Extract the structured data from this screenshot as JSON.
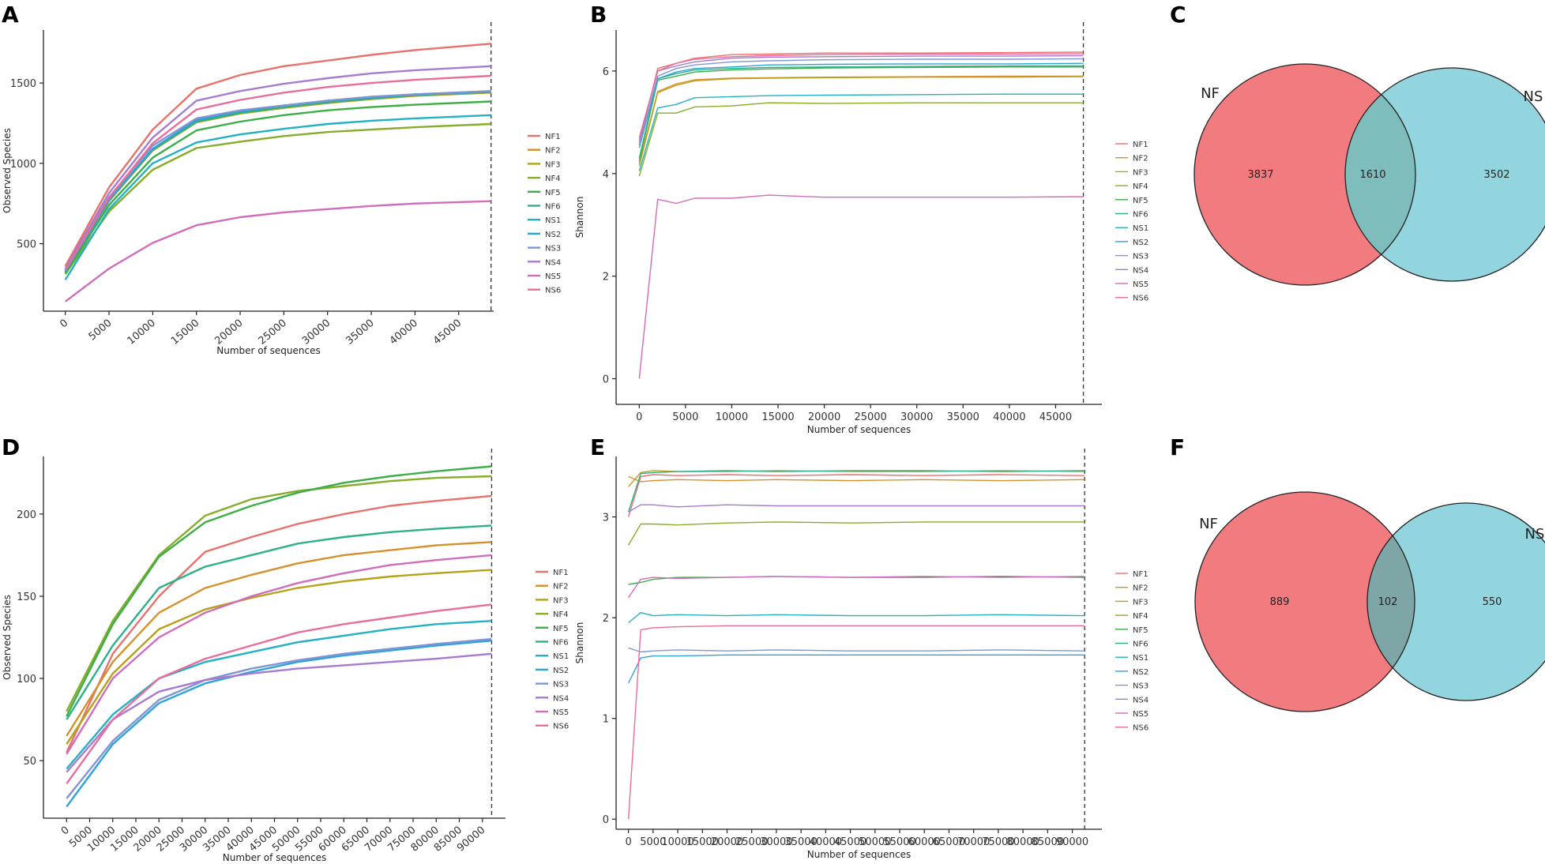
{
  "figure": {
    "series_names": [
      "NF1",
      "NF2",
      "NF3",
      "NF4",
      "NF5",
      "NF6",
      "NS1",
      "NS2",
      "NS3",
      "NS4",
      "NS5",
      "NS6"
    ],
    "colors": {
      "NF1": "#e8716b",
      "NF2": "#d6902a",
      "NF3": "#b5a21a",
      "NF4": "#86ad2a",
      "NF5": "#3cae48",
      "NF6": "#2bb08a",
      "NS1": "#22b1c3",
      "NS2": "#2fa2d8",
      "NS3": "#7f95d6",
      "NS4": "#a67bd0",
      "NS5": "#d06cbc",
      "NS6": "#e96c9c"
    }
  },
  "chart_data": [
    {
      "panel": "A",
      "type": "line",
      "xlabel": "Number of sequences",
      "ylabel": "Observed Species",
      "xlim": [
        -2500,
        49000
      ],
      "ylim": [
        80,
        1830
      ],
      "xticks": [
        0,
        5000,
        10000,
        15000,
        20000,
        25000,
        30000,
        35000,
        40000,
        45000
      ],
      "xtick_labels": [
        "0",
        "5000",
        "10000",
        "15000",
        "20000",
        "25000",
        "30000",
        "35000",
        "40000",
        "45000"
      ],
      "yticks": [
        500,
        1000,
        1500
      ],
      "ytick_labels": [
        "500",
        "1000",
        "1500"
      ],
      "xtick_rotate": true,
      "vline": 48700,
      "x": [
        0,
        5000,
        10000,
        15000,
        20000,
        25000,
        30000,
        35000,
        40000,
        48700
      ],
      "series": [
        {
          "name": "NF1",
          "values": [
            360,
            850,
            1210,
            1465,
            1550,
            1605,
            1640,
            1675,
            1705,
            1745
          ]
        },
        {
          "name": "NF2",
          "values": [
            330,
            775,
            1090,
            1265,
            1320,
            1355,
            1385,
            1410,
            1430,
            1450
          ]
        },
        {
          "name": "NF3",
          "values": [
            320,
            765,
            1080,
            1255,
            1310,
            1345,
            1375,
            1400,
            1420,
            1440
          ]
        },
        {
          "name": "NF4",
          "values": [
            310,
            700,
            960,
            1095,
            1135,
            1170,
            1195,
            1210,
            1225,
            1245
          ]
        },
        {
          "name": "NF5",
          "values": [
            315,
            740,
            1035,
            1205,
            1260,
            1300,
            1330,
            1350,
            1365,
            1385
          ]
        },
        {
          "name": "NF6",
          "values": [
            325,
            770,
            1085,
            1260,
            1315,
            1350,
            1380,
            1405,
            1425,
            1445
          ]
        },
        {
          "name": "NS1",
          "values": [
            275,
            715,
            1000,
            1130,
            1180,
            1215,
            1245,
            1265,
            1280,
            1300
          ]
        },
        {
          "name": "NS2",
          "values": [
            330,
            770,
            1090,
            1270,
            1325,
            1360,
            1390,
            1410,
            1430,
            1445
          ]
        },
        {
          "name": "NS3",
          "values": [
            340,
            790,
            1110,
            1280,
            1330,
            1360,
            1390,
            1415,
            1430,
            1450
          ]
        },
        {
          "name": "NS4",
          "values": [
            345,
            815,
            1160,
            1390,
            1450,
            1495,
            1530,
            1560,
            1580,
            1605
          ]
        },
        {
          "name": "NS5",
          "values": [
            140,
            345,
            505,
            615,
            665,
            695,
            715,
            735,
            750,
            765
          ]
        },
        {
          "name": "NS6",
          "values": [
            335,
            785,
            1125,
            1335,
            1395,
            1440,
            1475,
            1500,
            1520,
            1545
          ]
        }
      ]
    },
    {
      "panel": "B",
      "type": "line",
      "xlabel": "Number of sequences",
      "ylabel": "Shannon",
      "xlim": [
        -2500,
        50000
      ],
      "ylim": [
        -0.5,
        6.8
      ],
      "xticks": [
        0,
        5000,
        10000,
        15000,
        20000,
        25000,
        30000,
        35000,
        40000,
        45000
      ],
      "xtick_labels": [
        "0",
        "5000",
        "10000",
        "15000",
        "20000",
        "25000",
        "30000",
        "35000",
        "40000",
        "45000"
      ],
      "yticks": [
        0,
        2,
        4,
        6
      ],
      "ytick_labels": [
        "0",
        "2",
        "4",
        "6"
      ],
      "xtick_rotate": false,
      "vline": 48000,
      "x": [
        0,
        2000,
        4000,
        6000,
        10000,
        14000,
        20000,
        30000,
        40000,
        48000
      ],
      "series": [
        {
          "name": "NF1",
          "values": [
            4.6,
            6.05,
            6.15,
            6.25,
            6.32,
            6.33,
            6.35,
            6.35,
            6.36,
            6.37
          ]
        },
        {
          "name": "NF2",
          "values": [
            4.2,
            5.6,
            5.75,
            5.83,
            5.86,
            5.87,
            5.88,
            5.89,
            5.9,
            5.9
          ]
        },
        {
          "name": "NF3",
          "values": [
            4.15,
            5.58,
            5.72,
            5.81,
            5.85,
            5.86,
            5.87,
            5.88,
            5.88,
            5.89
          ]
        },
        {
          "name": "NF4",
          "values": [
            3.95,
            5.18,
            5.18,
            5.3,
            5.32,
            5.38,
            5.37,
            5.38,
            5.38,
            5.38
          ]
        },
        {
          "name": "NF5",
          "values": [
            4.25,
            5.82,
            5.9,
            5.98,
            6.02,
            6.04,
            6.06,
            6.07,
            6.08,
            6.08
          ]
        },
        {
          "name": "NF6",
          "values": [
            4.3,
            5.85,
            5.95,
            6.02,
            6.05,
            6.07,
            6.08,
            6.09,
            6.1,
            6.1
          ]
        },
        {
          "name": "NS1",
          "values": [
            4.05,
            5.28,
            5.35,
            5.48,
            5.5,
            5.52,
            5.53,
            5.54,
            5.55,
            5.55
          ]
        },
        {
          "name": "NS2",
          "values": [
            4.5,
            5.85,
            5.98,
            6.05,
            6.08,
            6.12,
            6.13,
            6.14,
            6.14,
            6.15
          ]
        },
        {
          "name": "NS3",
          "values": [
            4.55,
            5.9,
            6.05,
            6.12,
            6.18,
            6.2,
            6.22,
            6.23,
            6.23,
            6.24
          ]
        },
        {
          "name": "NS4",
          "values": [
            4.65,
            6.0,
            6.1,
            6.18,
            6.25,
            6.27,
            6.28,
            6.29,
            6.29,
            6.3
          ]
        },
        {
          "name": "NS5",
          "values": [
            0.0,
            3.5,
            3.42,
            3.52,
            3.52,
            3.58,
            3.54,
            3.54,
            3.54,
            3.55
          ]
        },
        {
          "name": "NS6",
          "values": [
            4.7,
            6.0,
            6.15,
            6.23,
            6.28,
            6.3,
            6.32,
            6.33,
            6.33,
            6.34
          ]
        }
      ]
    },
    {
      "panel": "D",
      "type": "line",
      "xlabel": "Number of sequences",
      "ylabel": "Observed Species",
      "xlim": [
        -5000,
        95000
      ],
      "ylim": [
        15,
        235
      ],
      "xticks": [
        0,
        5000,
        10000,
        15000,
        20000,
        25000,
        30000,
        35000,
        40000,
        45000,
        50000,
        55000,
        60000,
        65000,
        70000,
        75000,
        80000,
        85000,
        90000
      ],
      "xtick_labels": [
        "0",
        "5000",
        "10000",
        "15000",
        "20000",
        "25000",
        "30000",
        "35000",
        "40000",
        "45000",
        "50000",
        "55000",
        "60000",
        "65000",
        "70000",
        "75000",
        "80000",
        "85000",
        "90000"
      ],
      "yticks": [
        50,
        100,
        150,
        200
      ],
      "ytick_labels": [
        "50",
        "100",
        "150",
        "200"
      ],
      "xtick_rotate": true,
      "vline": 92000,
      "x": [
        0,
        10000,
        20000,
        30000,
        40000,
        50000,
        60000,
        70000,
        80000,
        92000
      ],
      "series": [
        {
          "name": "NF1",
          "values": [
            55,
            115,
            150,
            177,
            186,
            194,
            200,
            205,
            208,
            211
          ]
        },
        {
          "name": "NF2",
          "values": [
            65,
            110,
            140,
            155,
            163,
            170,
            175,
            178,
            181,
            183
          ]
        },
        {
          "name": "NF3",
          "values": [
            60,
            103,
            130,
            142,
            149,
            155,
            159,
            162,
            164,
            166
          ]
        },
        {
          "name": "NF4",
          "values": [
            80,
            135,
            175,
            199,
            209,
            214,
            217,
            220,
            222,
            223
          ]
        },
        {
          "name": "NF5",
          "values": [
            77,
            133,
            174,
            195,
            205,
            213,
            219,
            223,
            226,
            229
          ]
        },
        {
          "name": "NF6",
          "values": [
            75,
            120,
            155,
            168,
            175,
            182,
            186,
            189,
            191,
            193
          ]
        },
        {
          "name": "NS1",
          "values": [
            45,
            78,
            100,
            110,
            116,
            122,
            126,
            130,
            133,
            135
          ]
        },
        {
          "name": "NS2",
          "values": [
            22,
            60,
            85,
            97,
            104,
            110,
            114,
            117,
            120,
            123
          ]
        },
        {
          "name": "NS3",
          "values": [
            27,
            62,
            87,
            99,
            106,
            111,
            115,
            118,
            121,
            124
          ]
        },
        {
          "name": "NS4",
          "values": [
            43,
            75,
            92,
            99,
            103,
            106,
            108,
            110,
            112,
            115
          ]
        },
        {
          "name": "NS5",
          "values": [
            54,
            100,
            125,
            140,
            150,
            158,
            164,
            169,
            172,
            175
          ]
        },
        {
          "name": "NS6",
          "values": [
            36,
            75,
            100,
            112,
            120,
            128,
            133,
            137,
            141,
            145
          ]
        }
      ]
    },
    {
      "panel": "E",
      "type": "line",
      "xlabel": "Number of sequences",
      "ylabel": "Shannon",
      "xlim": [
        -2500,
        96000
      ],
      "ylim": [
        -0.1,
        3.6
      ],
      "xticks": [
        0,
        5000,
        10000,
        15000,
        20000,
        25000,
        30000,
        35000,
        40000,
        45000,
        50000,
        55000,
        60000,
        65000,
        70000,
        75000,
        80000,
        85000,
        90000
      ],
      "xtick_labels": [
        "0",
        "5000",
        "10000",
        "15000",
        "20000",
        "25000",
        "30000",
        "35000",
        "40000",
        "45000",
        "50000",
        "55000",
        "60000",
        "65000",
        "70000",
        "75000",
        "80000",
        "85000",
        "90000"
      ],
      "yticks": [
        0,
        1,
        2,
        3
      ],
      "ytick_labels": [
        "0",
        "1",
        "2",
        "3"
      ],
      "xtick_rotate": false,
      "vline": 92500,
      "x": [
        0,
        2500,
        5000,
        10000,
        20000,
        30000,
        45000,
        60000,
        75000,
        92500
      ],
      "series": [
        {
          "name": "NF1",
          "values": [
            3.0,
            3.4,
            3.42,
            3.41,
            3.42,
            3.41,
            3.42,
            3.41,
            3.42,
            3.41
          ]
        },
        {
          "name": "NF2",
          "values": [
            3.4,
            3.35,
            3.36,
            3.37,
            3.36,
            3.37,
            3.36,
            3.37,
            3.36,
            3.37
          ]
        },
        {
          "name": "NF3",
          "values": [
            3.3,
            3.44,
            3.46,
            3.45,
            3.45,
            3.46,
            3.45,
            3.45,
            3.46,
            3.45
          ]
        },
        {
          "name": "NF4",
          "values": [
            2.72,
            2.93,
            2.93,
            2.92,
            2.94,
            2.95,
            2.94,
            2.95,
            2.95,
            2.95
          ]
        },
        {
          "name": "NF5",
          "values": [
            2.33,
            2.35,
            2.38,
            2.4,
            2.4,
            2.41,
            2.4,
            2.4,
            2.41,
            2.4
          ]
        },
        {
          "name": "NF6",
          "values": [
            3.05,
            3.43,
            3.44,
            3.45,
            3.46,
            3.45,
            3.46,
            3.46,
            3.45,
            3.46
          ]
        },
        {
          "name": "NS1",
          "values": [
            1.95,
            2.05,
            2.02,
            2.03,
            2.02,
            2.03,
            2.02,
            2.02,
            2.03,
            2.02
          ]
        },
        {
          "name": "NS2",
          "values": [
            1.35,
            1.6,
            1.62,
            1.62,
            1.63,
            1.63,
            1.63,
            1.63,
            1.63,
            1.63
          ]
        },
        {
          "name": "NS3",
          "values": [
            1.7,
            1.66,
            1.67,
            1.68,
            1.67,
            1.68,
            1.67,
            1.67,
            1.68,
            1.67
          ]
        },
        {
          "name": "NS4",
          "values": [
            3.05,
            3.12,
            3.12,
            3.1,
            3.12,
            3.11,
            3.11,
            3.11,
            3.11,
            3.11
          ]
        },
        {
          "name": "NS5",
          "values": [
            2.2,
            2.38,
            2.4,
            2.39,
            2.4,
            2.41,
            2.4,
            2.41,
            2.4,
            2.41
          ]
        },
        {
          "name": "NS6",
          "values": [
            0.0,
            1.88,
            1.9,
            1.91,
            1.92,
            1.92,
            1.92,
            1.92,
            1.92,
            1.92
          ]
        }
      ]
    },
    {
      "panel": "C",
      "type": "venn",
      "sets": [
        {
          "name": "NF",
          "only": 3837,
          "color": "#f27b7f"
        },
        {
          "name": "NS",
          "only": 3502,
          "color": "#93d5df"
        }
      ],
      "overlap": 1610,
      "overlap_color": "#7fbcbc"
    },
    {
      "panel": "F",
      "type": "venn",
      "sets": [
        {
          "name": "NF",
          "only": 889,
          "color": "#f27b7f"
        },
        {
          "name": "NS",
          "only": 550,
          "color": "#93d5df"
        }
      ],
      "overlap": 102,
      "overlap_color": "#7fa6a6"
    }
  ]
}
